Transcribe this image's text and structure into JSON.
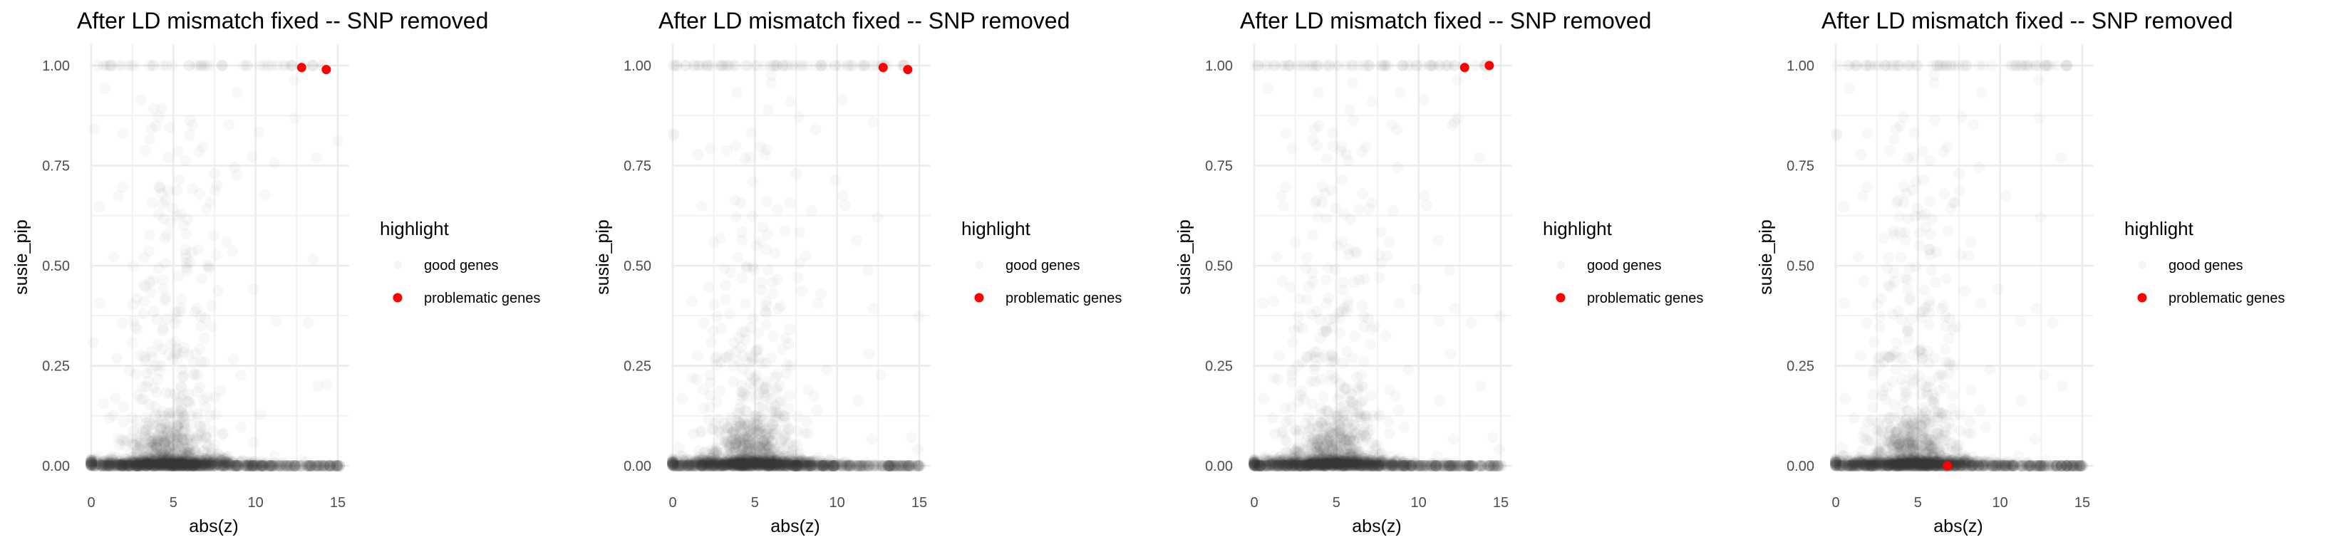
{
  "chart_data": [
    {
      "type": "scatter",
      "title": "After LD mismatch fixed -- SNP removed",
      "xlabel": "abs(z)",
      "ylabel": "susie_pip",
      "xlim": [
        0,
        15
      ],
      "ylim": [
        0,
        1
      ],
      "x_ticks": [
        0,
        5,
        10,
        15
      ],
      "y_ticks": [
        0.0,
        0.25,
        0.5,
        0.75,
        1.0
      ],
      "x_tick_labels": [
        "0",
        "5",
        "10",
        "15"
      ],
      "y_tick_labels": [
        "0.00",
        "0.25",
        "0.50",
        "0.75",
        "1.00"
      ],
      "grid": true,
      "legend": {
        "title": "highlight",
        "position": "right",
        "entries": [
          {
            "label": "good genes",
            "color": "#333333"
          },
          {
            "label": "problematic genes",
            "color": "#ff0000"
          }
        ]
      },
      "series": [
        {
          "name": "problematic genes",
          "color": "#ff0000",
          "points": [
            {
              "x": 12.8,
              "y": 0.995
            },
            {
              "x": 14.3,
              "y": 0.99
            }
          ]
        }
      ]
    },
    {
      "type": "scatter",
      "title": "After LD mismatch fixed -- SNP removed",
      "xlabel": "abs(z)",
      "ylabel": "susie_pip",
      "xlim": [
        0,
        15
      ],
      "ylim": [
        0,
        1
      ],
      "x_ticks": [
        0,
        5,
        10,
        15
      ],
      "y_ticks": [
        0.0,
        0.25,
        0.5,
        0.75,
        1.0
      ],
      "x_tick_labels": [
        "0",
        "5",
        "10",
        "15"
      ],
      "y_tick_labels": [
        "0.00",
        "0.25",
        "0.50",
        "0.75",
        "1.00"
      ],
      "grid": true,
      "legend": {
        "title": "highlight",
        "position": "right",
        "entries": [
          {
            "label": "good genes",
            "color": "#333333"
          },
          {
            "label": "problematic genes",
            "color": "#ff0000"
          }
        ]
      },
      "series": [
        {
          "name": "problematic genes",
          "color": "#ff0000",
          "points": [
            {
              "x": 12.8,
              "y": 0.995
            },
            {
              "x": 14.3,
              "y": 0.99
            }
          ]
        }
      ]
    },
    {
      "type": "scatter",
      "title": "After LD mismatch fixed -- SNP removed",
      "xlabel": "abs(z)",
      "ylabel": "susie_pip",
      "xlim": [
        0,
        15
      ],
      "ylim": [
        0,
        1
      ],
      "x_ticks": [
        0,
        5,
        10,
        15
      ],
      "y_ticks": [
        0.0,
        0.25,
        0.5,
        0.75,
        1.0
      ],
      "x_tick_labels": [
        "0",
        "5",
        "10",
        "15"
      ],
      "y_tick_labels": [
        "0.00",
        "0.25",
        "0.50",
        "0.75",
        "1.00"
      ],
      "grid": true,
      "legend": {
        "title": "highlight",
        "position": "right",
        "entries": [
          {
            "label": "good genes",
            "color": "#333333"
          },
          {
            "label": "problematic genes",
            "color": "#ff0000"
          }
        ]
      },
      "series": [
        {
          "name": "problematic genes",
          "color": "#ff0000",
          "points": [
            {
              "x": 12.8,
              "y": 0.995
            },
            {
              "x": 14.3,
              "y": 1.0
            }
          ]
        }
      ]
    },
    {
      "type": "scatter",
      "title": "After LD mismatch fixed -- SNP removed",
      "xlabel": "abs(z)",
      "ylabel": "susie_pip",
      "xlim": [
        0,
        15
      ],
      "ylim": [
        0,
        1
      ],
      "x_ticks": [
        0,
        5,
        10,
        15
      ],
      "y_ticks": [
        0.0,
        0.25,
        0.5,
        0.75,
        1.0
      ],
      "x_tick_labels": [
        "0",
        "5",
        "10",
        "15"
      ],
      "y_tick_labels": [
        "0.00",
        "0.25",
        "0.50",
        "0.75",
        "1.00"
      ],
      "grid": true,
      "legend": {
        "title": "highlight",
        "position": "right",
        "entries": [
          {
            "label": "good genes",
            "color": "#333333"
          },
          {
            "label": "problematic genes",
            "color": "#ff0000"
          }
        ]
      },
      "series": [
        {
          "name": "problematic genes",
          "color": "#ff0000",
          "points": [
            {
              "x": 6.8,
              "y": 0.0
            }
          ]
        }
      ]
    }
  ]
}
